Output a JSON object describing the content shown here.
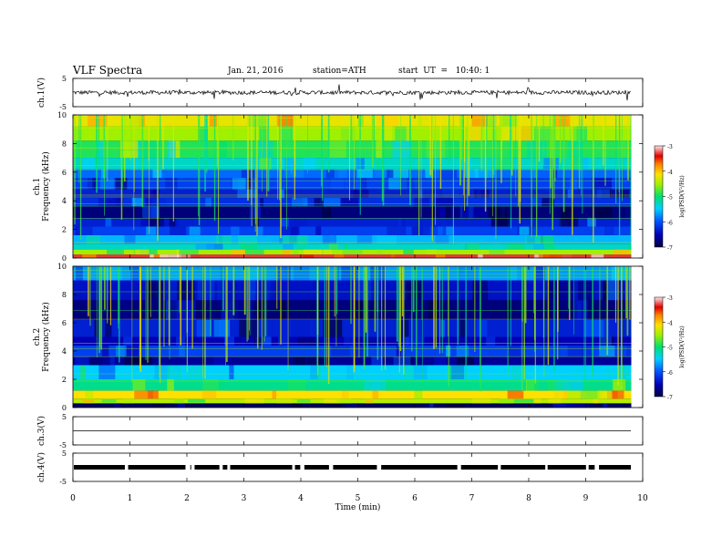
{
  "header": {
    "title": "VLF  Spectra",
    "date": "Jan. 21, 2016",
    "station": "station=ATH",
    "start": "start  UT  =   10:40: 1"
  },
  "chart_data": [
    {
      "type": "line",
      "panel": "ch1-waveform",
      "ylabel": "ch.1(V)",
      "ylim": [
        -5,
        5
      ],
      "yticks": [
        "5",
        "-5"
      ],
      "baseline": 0
    },
    {
      "type": "heatmap",
      "panel": "ch1-spectrogram",
      "ylabel": "ch.1\nFrequency (kHz)",
      "ylim": [
        0,
        10
      ],
      "yticks": [
        "0",
        "2",
        "4",
        "6",
        "8",
        "10"
      ],
      "x_extent_min": 9.8,
      "colorbar": {
        "label": "log(PSD(V²/Hz)",
        "range": [
          -7,
          -3
        ],
        "ticks": [
          "-3",
          "-4",
          "-5",
          "-6",
          "-7"
        ]
      },
      "band_log_psd": [
        {
          "f": [
            0.0,
            0.25
          ],
          "v": -3.3
        },
        {
          "f": [
            0.25,
            0.6
          ],
          "v": -4.6
        },
        {
          "f": [
            0.6,
            1.0
          ],
          "v": -5.4
        },
        {
          "f": [
            1.0,
            1.6
          ],
          "v": -5.7
        },
        {
          "f": [
            1.6,
            2.2
          ],
          "v": -6.2
        },
        {
          "f": [
            2.2,
            2.8
          ],
          "v": -6.4
        },
        {
          "f": [
            2.8,
            3.6
          ],
          "v": -6.8
        },
        {
          "f": [
            3.6,
            4.2
          ],
          "v": -6.3
        },
        {
          "f": [
            4.2,
            4.8
          ],
          "v": -6.4
        },
        {
          "f": [
            4.8,
            5.6
          ],
          "v": -6.2
        },
        {
          "f": [
            5.6,
            6.2
          ],
          "v": -6.0
        },
        {
          "f": [
            6.2,
            7.0
          ],
          "v": -5.4
        },
        {
          "f": [
            7.0,
            8.2
          ],
          "v": -5.0
        },
        {
          "f": [
            8.2,
            9.2
          ],
          "v": -4.6
        },
        {
          "f": [
            9.2,
            10.0
          ],
          "v": -4.3
        }
      ]
    },
    {
      "type": "heatmap",
      "panel": "ch2-spectrogram",
      "ylabel": "ch.2\nFrequency (kHz)",
      "ylim": [
        0,
        10
      ],
      "yticks": [
        "0",
        "2",
        "4",
        "6",
        "8",
        "10"
      ],
      "x_extent_min": 9.8,
      "colorbar": {
        "label": "log(PSD(V²/Hz)",
        "range": [
          -7,
          -3
        ],
        "ticks": [
          "-3",
          "-4",
          "-5",
          "-6",
          "-7"
        ]
      },
      "band_log_psd": [
        {
          "f": [
            0.0,
            0.3
          ],
          "v": -6.9
        },
        {
          "f": [
            0.3,
            0.6
          ],
          "v": -4.5
        },
        {
          "f": [
            0.6,
            1.2
          ],
          "v": -4.2
        },
        {
          "f": [
            1.2,
            2.0
          ],
          "v": -5.2
        },
        {
          "f": [
            2.0,
            3.0
          ],
          "v": -5.6
        },
        {
          "f": [
            3.0,
            3.6
          ],
          "v": -6.7
        },
        {
          "f": [
            3.6,
            4.4
          ],
          "v": -6.2
        },
        {
          "f": [
            4.4,
            5.0
          ],
          "v": -6.6
        },
        {
          "f": [
            5.0,
            6.2
          ],
          "v": -6.4
        },
        {
          "f": [
            6.2,
            7.6
          ],
          "v": -6.8
        },
        {
          "f": [
            7.6,
            9.0
          ],
          "v": -6.5
        },
        {
          "f": [
            9.0,
            10.0
          ],
          "v": -5.8
        }
      ]
    },
    {
      "type": "line",
      "panel": "ch3-waveform",
      "ylabel": "ch.3(V)",
      "ylim": [
        -5,
        5
      ],
      "yticks": [
        "5",
        "-5"
      ],
      "baseline": 0
    },
    {
      "type": "line",
      "panel": "ch4-waveform",
      "ylabel": "ch.4(V)",
      "ylim": [
        -5,
        5
      ],
      "yticks": [
        "5",
        "-5"
      ],
      "baseline": 0
    }
  ],
  "xaxis": {
    "label": "Time  (min)",
    "range": [
      0,
      10
    ],
    "ticks": [
      "0",
      "1",
      "2",
      "3",
      "4",
      "5",
      "6",
      "7",
      "8",
      "9",
      "10"
    ]
  }
}
